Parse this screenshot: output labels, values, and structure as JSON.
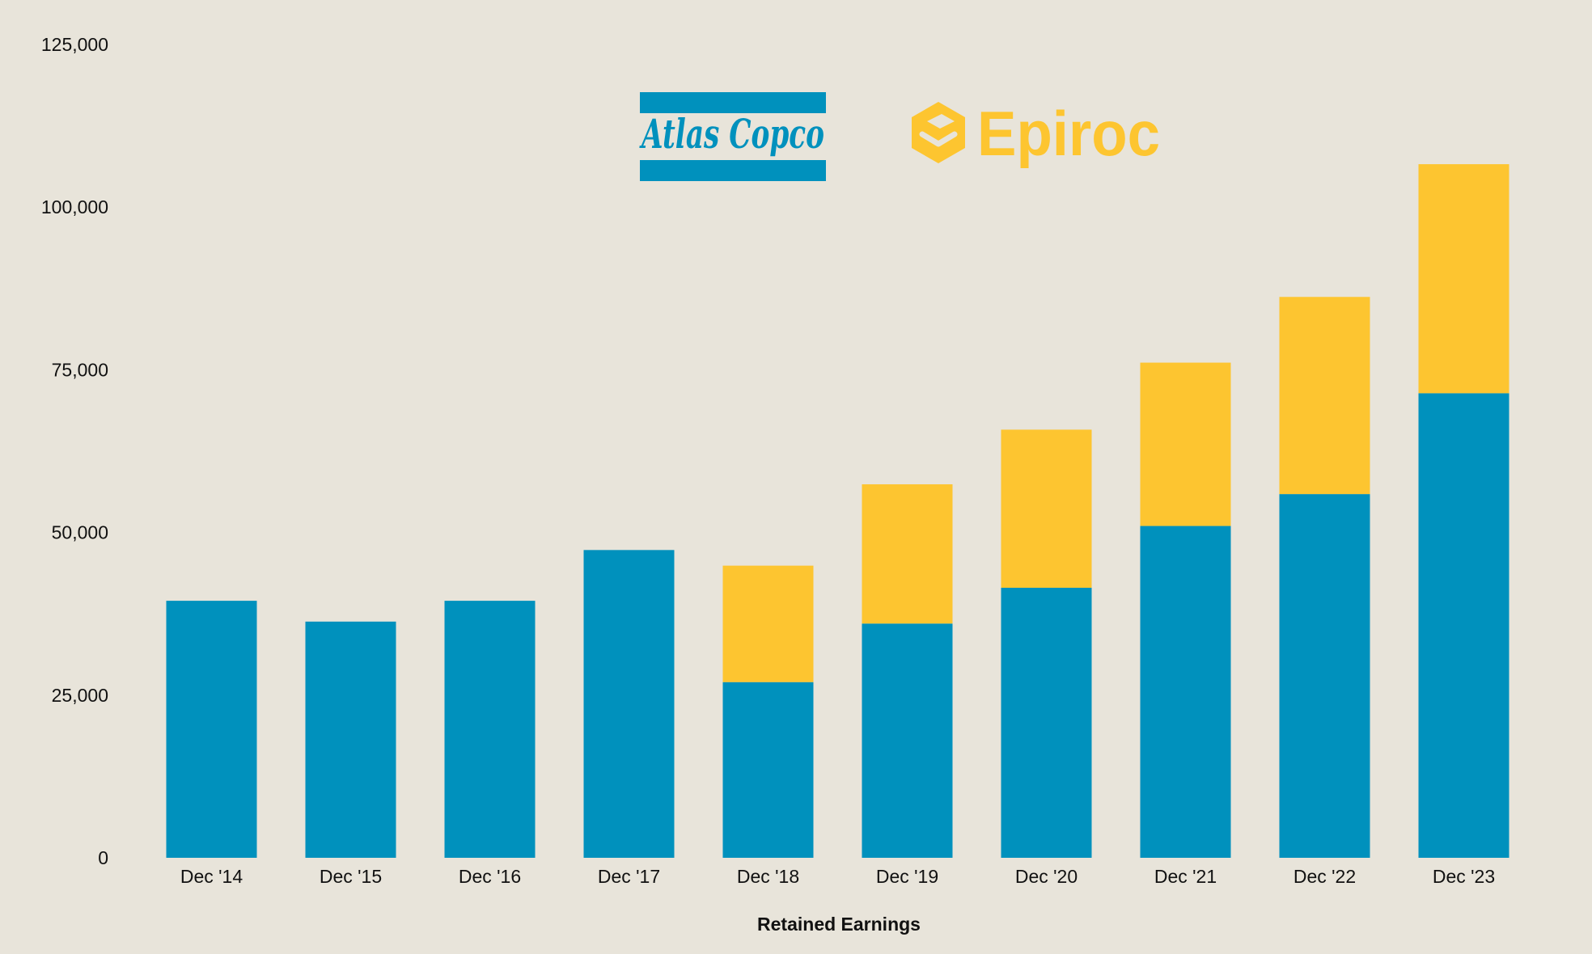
{
  "colors": {
    "background": "#E8E4DA",
    "atlas_copco": "#0091BD",
    "epiroc": "#FDC530",
    "text": "#111111"
  },
  "logos": {
    "atlas_copco": "Atlas Copco",
    "epiroc": "Epiroc"
  },
  "chart_data": {
    "type": "bar",
    "stacked": true,
    "title": "",
    "xlabel": "Retained Earnings",
    "ylabel": "",
    "ylim": [
      0,
      125000
    ],
    "yticks": [
      0,
      25000,
      50000,
      75000,
      100000,
      125000
    ],
    "ytick_labels": [
      "0",
      "25,000",
      "50,000",
      "75,000",
      "100,000",
      "125,000"
    ],
    "grid": false,
    "legend": "none (company logos shown at top)",
    "categories": [
      "Dec '14",
      "Dec '15",
      "Dec '16",
      "Dec '17",
      "Dec '18",
      "Dec '19",
      "Dec '20",
      "Dec '21",
      "Dec '22",
      "Dec '23"
    ],
    "series": [
      {
        "name": "Atlas Copco",
        "color": "#0091BD",
        "values": [
          39500,
          36300,
          39500,
          47300,
          27000,
          36000,
          41500,
          51000,
          55900,
          71400
        ]
      },
      {
        "name": "Epiroc",
        "color": "#FDC530",
        "values": [
          0,
          0,
          0,
          0,
          17900,
          21400,
          24300,
          25100,
          30300,
          35200
        ]
      }
    ]
  }
}
